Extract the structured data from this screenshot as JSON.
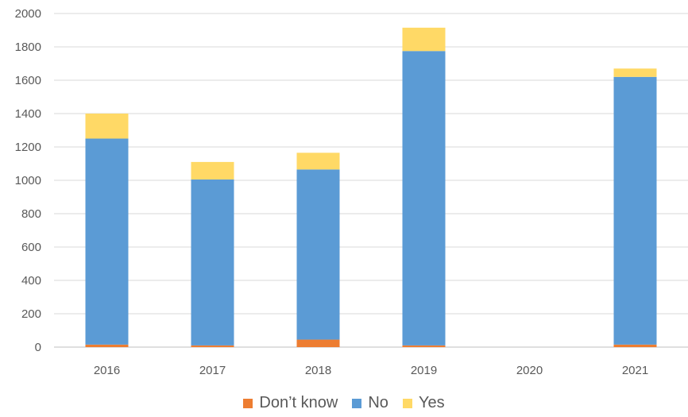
{
  "chart_data": {
    "type": "bar",
    "stacked": true,
    "categories": [
      "2016",
      "2017",
      "2018",
      "2019",
      "2020",
      "2021"
    ],
    "series": [
      {
        "name": "Don’t know",
        "color": "#ED7D31",
        "values": [
          15,
          10,
          45,
          10,
          0,
          15
        ]
      },
      {
        "name": "No",
        "color": "#5B9BD5",
        "values": [
          1235,
          995,
          1020,
          1765,
          0,
          1605
        ]
      },
      {
        "name": "Yes",
        "color": "#FFD966",
        "values": [
          150,
          105,
          100,
          140,
          0,
          50
        ]
      }
    ],
    "ylim": [
      0,
      2000
    ],
    "yticks": [
      "0",
      "200",
      "400",
      "600",
      "800",
      "1000",
      "1200",
      "1400",
      "1600",
      "1800",
      "2000"
    ],
    "grid": true,
    "legend_position": "bottom"
  }
}
